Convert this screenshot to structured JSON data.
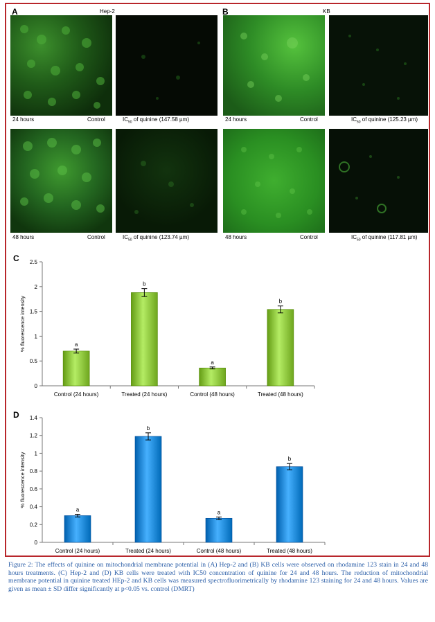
{
  "panelA": {
    "letter": "A",
    "title": "Hep-2",
    "images": [
      {
        "left_caption": "24 hours",
        "right_caption": "Control"
      },
      {
        "left_caption": "IC",
        "sub": "50",
        "right_caption": " of quinine (147.58 µm)"
      },
      {
        "left_caption": "48 hours",
        "right_caption": "Control"
      },
      {
        "left_caption": "IC",
        "sub": "50",
        "right_caption": " of quinine (123.74 µm)"
      }
    ]
  },
  "panelB": {
    "letter": "B",
    "title": "KB",
    "images": [
      {
        "left_caption": "24 hours",
        "right_caption": "Control"
      },
      {
        "left_caption": "IC",
        "sub": "50",
        "right_caption": " of quinine (125.23 µm)"
      },
      {
        "left_caption": "48 hours",
        "right_caption": "Control"
      },
      {
        "left_caption": "IC",
        "sub": "50",
        "right_caption": " of quinine (117.81 µm)"
      }
    ]
  },
  "chart_data": [
    {
      "type": "bar",
      "panel": "C",
      "categories": [
        "Control (24 hours)",
        "Treated (24 hours)",
        "Control (48 hours)",
        "Treated (48 hours)"
      ],
      "values": [
        0.7,
        1.88,
        0.36,
        1.54
      ],
      "errors": [
        0.04,
        0.08,
        0.02,
        0.07
      ],
      "significance": [
        "a",
        "b",
        "a",
        "b"
      ],
      "ylabel": "% fluorescence intensity",
      "ylim": [
        0,
        2.5
      ],
      "yticks": [
        "0",
        "0.5",
        "1",
        "1.5",
        "2",
        "2.5"
      ],
      "bar_color": "#8cc43c",
      "grid": false
    },
    {
      "type": "bar",
      "panel": "D",
      "categories": [
        "Control (24 hours)",
        "Treated (24 hours)",
        "Control (48 hours)",
        "Treated (48 hours)"
      ],
      "values": [
        0.3,
        1.19,
        0.27,
        0.85
      ],
      "errors": [
        0.015,
        0.04,
        0.015,
        0.035
      ],
      "significance": [
        "a",
        "b",
        "a",
        "b"
      ],
      "ylabel": "% fluorescence intensity",
      "ylim": [
        0,
        1.4
      ],
      "yticks": [
        "0",
        "0.2",
        "0.4",
        "0.6",
        "0.8",
        "1",
        "1.2",
        "1.4"
      ],
      "bar_color": "#1e88d6",
      "grid": false
    }
  ],
  "caption": "Figure 2: The effects of quinine on mitochondrial membrane potential in (A) Hep-2 and (B) KB cells were observed on rhodamine 123 stain in 24 and 48 hours treatments. (C) Hep-2 and (D) KB cells were treated with IC50 concentration of quinine for 24 and 48 hours. The reduction of mitochondrial membrane potential in quinine treated HEp-2 and KB cells was measured spectrofluorimetrically by rhodamine 123 staining for 24 and 48 hours. Values are given as mean ± SD differ significantly at p<0.05 vs. control (DMRT)"
}
